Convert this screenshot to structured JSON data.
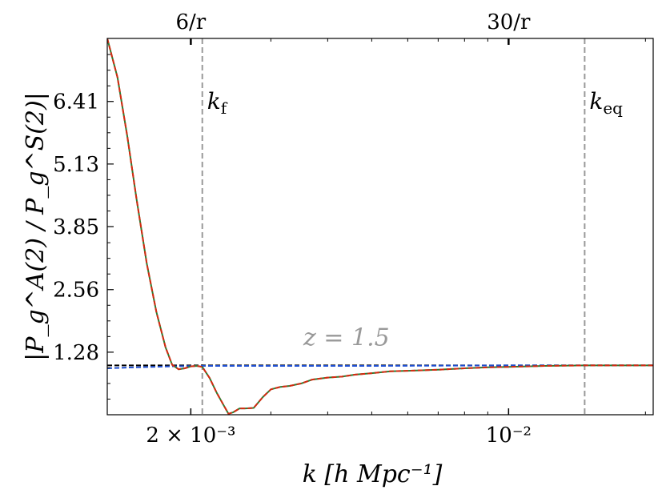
{
  "chart_data": {
    "type": "line",
    "title": "",
    "xlabel": "k [h Mpc⁻¹]",
    "ylabel": "|P_g^A(2) / P_g^S(2)|",
    "x_scale": "log",
    "xlim": [
      0.00131,
      0.0208
    ],
    "ylim": [
      0.0,
      7.7
    ],
    "x_ticks": [
      {
        "value": 0.002,
        "label": "2 × 10⁻³"
      },
      {
        "value": 0.01,
        "label": "10⁻²"
      }
    ],
    "top_ticks": [
      {
        "value": 0.002,
        "label": "6/r"
      },
      {
        "value": 0.01,
        "label": "30/r"
      }
    ],
    "y_ticks": [
      {
        "value": 1.28,
        "label": "1.28"
      },
      {
        "value": 2.56,
        "label": "2.56"
      },
      {
        "value": 3.85,
        "label": "3.85"
      },
      {
        "value": 5.13,
        "label": "5.13"
      },
      {
        "value": 6.41,
        "label": "6.41"
      }
    ],
    "vlines": [
      {
        "value": 0.00212,
        "label": "k_f",
        "label_main": "k",
        "label_sub": "f"
      },
      {
        "value": 0.0147,
        "label": "k_eq",
        "label_main": "k",
        "label_sub": "eq"
      }
    ],
    "annotation": {
      "text": "z = 1.5",
      "x": 0.0044,
      "y": 1.42
    },
    "series": [
      {
        "color": "#000000",
        "style": "dashed",
        "x": [
          0.00131,
          0.0208
        ],
        "y": [
          1.01,
          1.01
        ]
      },
      {
        "color": "#1f4fd1",
        "style": "dashed",
        "x": [
          0.00131,
          0.0015,
          0.0018,
          0.0021,
          0.003,
          0.005,
          0.01,
          0.0208
        ],
        "y": [
          0.95,
          0.97,
          0.99,
          1.0,
          1.0,
          1.0,
          1.01,
          1.01
        ]
      },
      {
        "color": "#2e7d32",
        "style": "solid",
        "x": [
          0.00131,
          0.00138,
          0.00145,
          0.00152,
          0.0016,
          0.00168,
          0.00176,
          0.00182,
          0.00188,
          0.00194,
          0.002,
          0.00206,
          0.00212,
          0.0022,
          0.00228,
          0.00236,
          0.00242,
          0.00248,
          0.00256,
          0.00264,
          0.00275,
          0.00288,
          0.003,
          0.00315,
          0.0033,
          0.0035,
          0.0037,
          0.004,
          0.0043,
          0.0046,
          0.005,
          0.0055,
          0.006,
          0.007,
          0.008,
          0.009,
          0.01,
          0.012,
          0.0147,
          0.0175,
          0.0208
        ],
        "y": [
          7.7,
          6.9,
          5.7,
          4.4,
          3.1,
          2.1,
          1.38,
          1.02,
          0.93,
          0.95,
          0.99,
          1.0,
          0.98,
          0.75,
          0.45,
          0.2,
          0.02,
          0.05,
          0.13,
          0.13,
          0.14,
          0.36,
          0.52,
          0.57,
          0.59,
          0.64,
          0.72,
          0.76,
          0.78,
          0.82,
          0.85,
          0.89,
          0.9,
          0.92,
          0.95,
          0.97,
          0.98,
          1.0,
          1.01,
          1.01,
          1.01
        ]
      },
      {
        "color": "#d62a12",
        "style": "dashed",
        "x": [
          0.00131,
          0.00138,
          0.00145,
          0.00152,
          0.0016,
          0.00168,
          0.00176,
          0.00182,
          0.00188,
          0.00194,
          0.002,
          0.00206,
          0.00212,
          0.0022,
          0.00228,
          0.00236,
          0.00242,
          0.00248,
          0.00256,
          0.00264,
          0.00275,
          0.00288,
          0.003,
          0.00315,
          0.0033,
          0.0035,
          0.0037,
          0.004,
          0.0043,
          0.0046,
          0.005,
          0.0055,
          0.006,
          0.007,
          0.008,
          0.009,
          0.01,
          0.012,
          0.0147,
          0.0175,
          0.0208
        ],
        "y": [
          7.7,
          6.9,
          5.7,
          4.4,
          3.1,
          2.1,
          1.38,
          1.02,
          0.93,
          0.95,
          0.99,
          1.0,
          0.98,
          0.75,
          0.45,
          0.2,
          0.02,
          0.05,
          0.13,
          0.13,
          0.14,
          0.36,
          0.52,
          0.57,
          0.59,
          0.64,
          0.72,
          0.76,
          0.78,
          0.82,
          0.85,
          0.89,
          0.9,
          0.92,
          0.95,
          0.97,
          0.98,
          1.0,
          1.01,
          1.01,
          1.01
        ]
      }
    ]
  }
}
